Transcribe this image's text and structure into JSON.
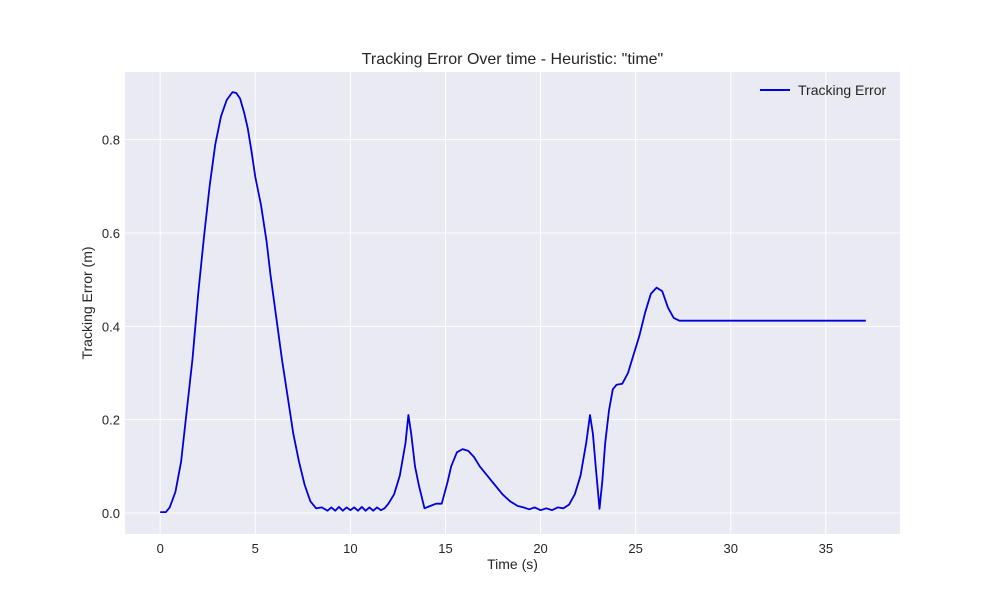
{
  "chart_data": {
    "type": "line",
    "title": "Tracking Error Over time - Heuristic: \"time\"",
    "xlabel": "Time (s)",
    "ylabel": "Tracking Error (m)",
    "xlim": [
      -1.85,
      38.9
    ],
    "ylim": [
      -0.045,
      0.945
    ],
    "xticks": [
      0,
      5,
      10,
      15,
      20,
      25,
      30,
      35
    ],
    "yticks": [
      0.0,
      0.2,
      0.4,
      0.6,
      0.8
    ],
    "xtick_labels": [
      "0",
      "5",
      "10",
      "15",
      "20",
      "25",
      "30",
      "35"
    ],
    "ytick_labels": [
      "0.0",
      "0.2",
      "0.4",
      "0.6",
      "0.8"
    ],
    "grid": true,
    "legend": "top-right",
    "background": "#eaeaf2",
    "series": [
      {
        "name": "Tracking Error",
        "color": "#0000dd",
        "x": [
          0.0,
          0.3,
          0.5,
          0.8,
          1.1,
          1.4,
          1.7,
          2.0,
          2.3,
          2.6,
          2.9,
          3.2,
          3.5,
          3.8,
          4.0,
          4.2,
          4.4,
          4.6,
          4.8,
          5.0,
          5.3,
          5.6,
          5.8,
          6.1,
          6.4,
          6.7,
          7.0,
          7.3,
          7.6,
          7.9,
          8.2,
          8.5,
          8.8,
          9.0,
          9.2,
          9.4,
          9.6,
          9.8,
          10.0,
          10.2,
          10.4,
          10.6,
          10.8,
          11.0,
          11.2,
          11.4,
          11.6,
          11.8,
          12.0,
          12.3,
          12.6,
          12.9,
          13.05,
          13.2,
          13.4,
          13.6,
          13.9,
          14.2,
          14.5,
          14.8,
          15.1,
          15.3,
          15.6,
          15.9,
          16.2,
          16.5,
          16.8,
          17.2,
          17.6,
          18.0,
          18.4,
          18.8,
          19.1,
          19.4,
          19.7,
          20.0,
          20.3,
          20.6,
          20.9,
          21.2,
          21.5,
          21.8,
          22.1,
          22.4,
          22.6,
          22.75,
          22.9,
          23.1,
          23.25,
          23.4,
          23.6,
          23.8,
          24.0,
          24.3,
          24.6,
          24.9,
          25.2,
          25.5,
          25.8,
          26.1,
          26.4,
          26.7,
          27.0,
          27.3,
          27.6,
          28.0,
          30.0,
          33.0,
          35.0,
          37.1
        ],
        "values": [
          0.002,
          0.002,
          0.012,
          0.045,
          0.11,
          0.22,
          0.33,
          0.47,
          0.59,
          0.7,
          0.79,
          0.85,
          0.885,
          0.902,
          0.9,
          0.888,
          0.86,
          0.825,
          0.775,
          0.72,
          0.66,
          0.58,
          0.51,
          0.42,
          0.33,
          0.25,
          0.17,
          0.11,
          0.06,
          0.025,
          0.01,
          0.012,
          0.005,
          0.012,
          0.005,
          0.013,
          0.005,
          0.012,
          0.006,
          0.012,
          0.005,
          0.013,
          0.005,
          0.012,
          0.005,
          0.012,
          0.006,
          0.01,
          0.02,
          0.04,
          0.08,
          0.15,
          0.21,
          0.17,
          0.1,
          0.06,
          0.01,
          0.015,
          0.02,
          0.02,
          0.065,
          0.1,
          0.13,
          0.137,
          0.133,
          0.12,
          0.1,
          0.08,
          0.06,
          0.04,
          0.025,
          0.015,
          0.012,
          0.008,
          0.012,
          0.006,
          0.01,
          0.006,
          0.012,
          0.01,
          0.018,
          0.04,
          0.08,
          0.15,
          0.21,
          0.17,
          0.1,
          0.009,
          0.07,
          0.15,
          0.22,
          0.265,
          0.275,
          0.277,
          0.3,
          0.34,
          0.38,
          0.43,
          0.47,
          0.483,
          0.475,
          0.44,
          0.418,
          0.412,
          0.412,
          0.412,
          0.412,
          0.412,
          0.412,
          0.412
        ]
      }
    ]
  }
}
